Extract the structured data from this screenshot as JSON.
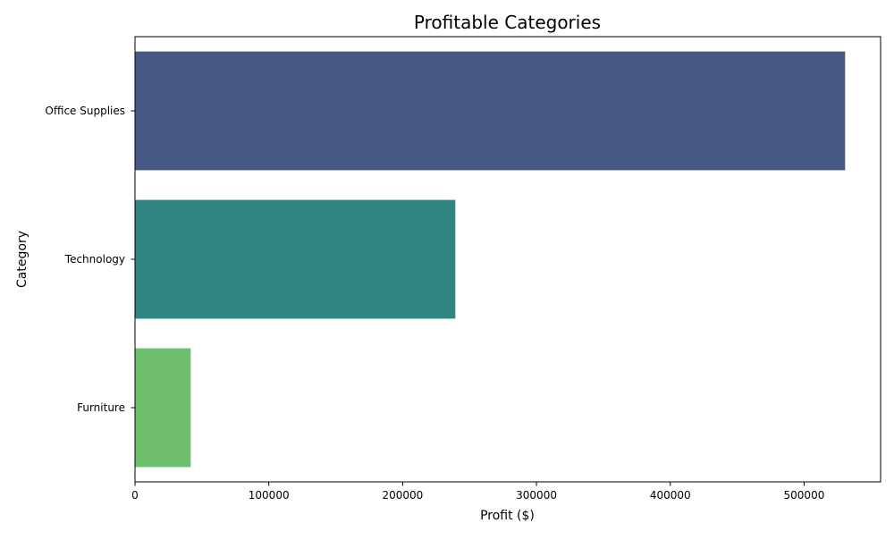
{
  "chart_data": {
    "type": "bar",
    "orientation": "horizontal",
    "title": "Profitable Categories",
    "xlabel": "Profit ($)",
    "ylabel": "Category",
    "categories": [
      "Office Supplies",
      "Technology",
      "Furniture"
    ],
    "values": [
      530630,
      239380,
      41650
    ],
    "colors": [
      "#455885",
      "#2e8480",
      "#6ebe6e"
    ],
    "xlim": [
      0,
      557160
    ],
    "xticks": [
      0,
      100000,
      200000,
      300000,
      400000,
      500000
    ],
    "xtick_labels": [
      "0",
      "100000",
      "200000",
      "300000",
      "400000",
      "500000"
    ],
    "grid": false,
    "legend": "none"
  }
}
